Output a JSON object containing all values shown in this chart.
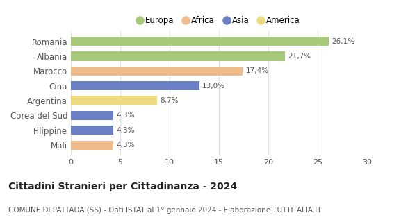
{
  "categories": [
    "Romania",
    "Albania",
    "Marocco",
    "Cina",
    "Argentina",
    "Corea del Sud",
    "Filippine",
    "Mali"
  ],
  "values": [
    26.1,
    21.7,
    17.4,
    13.0,
    8.7,
    4.3,
    4.3,
    4.3
  ],
  "labels": [
    "26,1%",
    "21,7%",
    "17,4%",
    "13,0%",
    "8,7%",
    "4,3%",
    "4,3%",
    "4,3%"
  ],
  "bar_colors": [
    "#a8c87a",
    "#a8c87a",
    "#f0bc8c",
    "#6b80c4",
    "#f0dc80",
    "#6b80c4",
    "#6b80c4",
    "#f0bc8c"
  ],
  "legend": [
    {
      "label": "Europa",
      "color": "#a8c87a"
    },
    {
      "label": "Africa",
      "color": "#f0bc8c"
    },
    {
      "label": "Asia",
      "color": "#6b80c4"
    },
    {
      "label": "America",
      "color": "#f0dc80"
    }
  ],
  "xlim": [
    0,
    30
  ],
  "xticks": [
    0,
    5,
    10,
    15,
    20,
    25,
    30
  ],
  "title": "Cittadini Stranieri per Cittadinanza - 2024",
  "subtitle": "COMUNE DI PATTADA (SS) - Dati ISTAT al 1° gennaio 2024 - Elaborazione TUTTITALIA.IT",
  "title_fontsize": 10,
  "subtitle_fontsize": 7.5,
  "background_color": "#ffffff",
  "grid_color": "#e0e0e0"
}
